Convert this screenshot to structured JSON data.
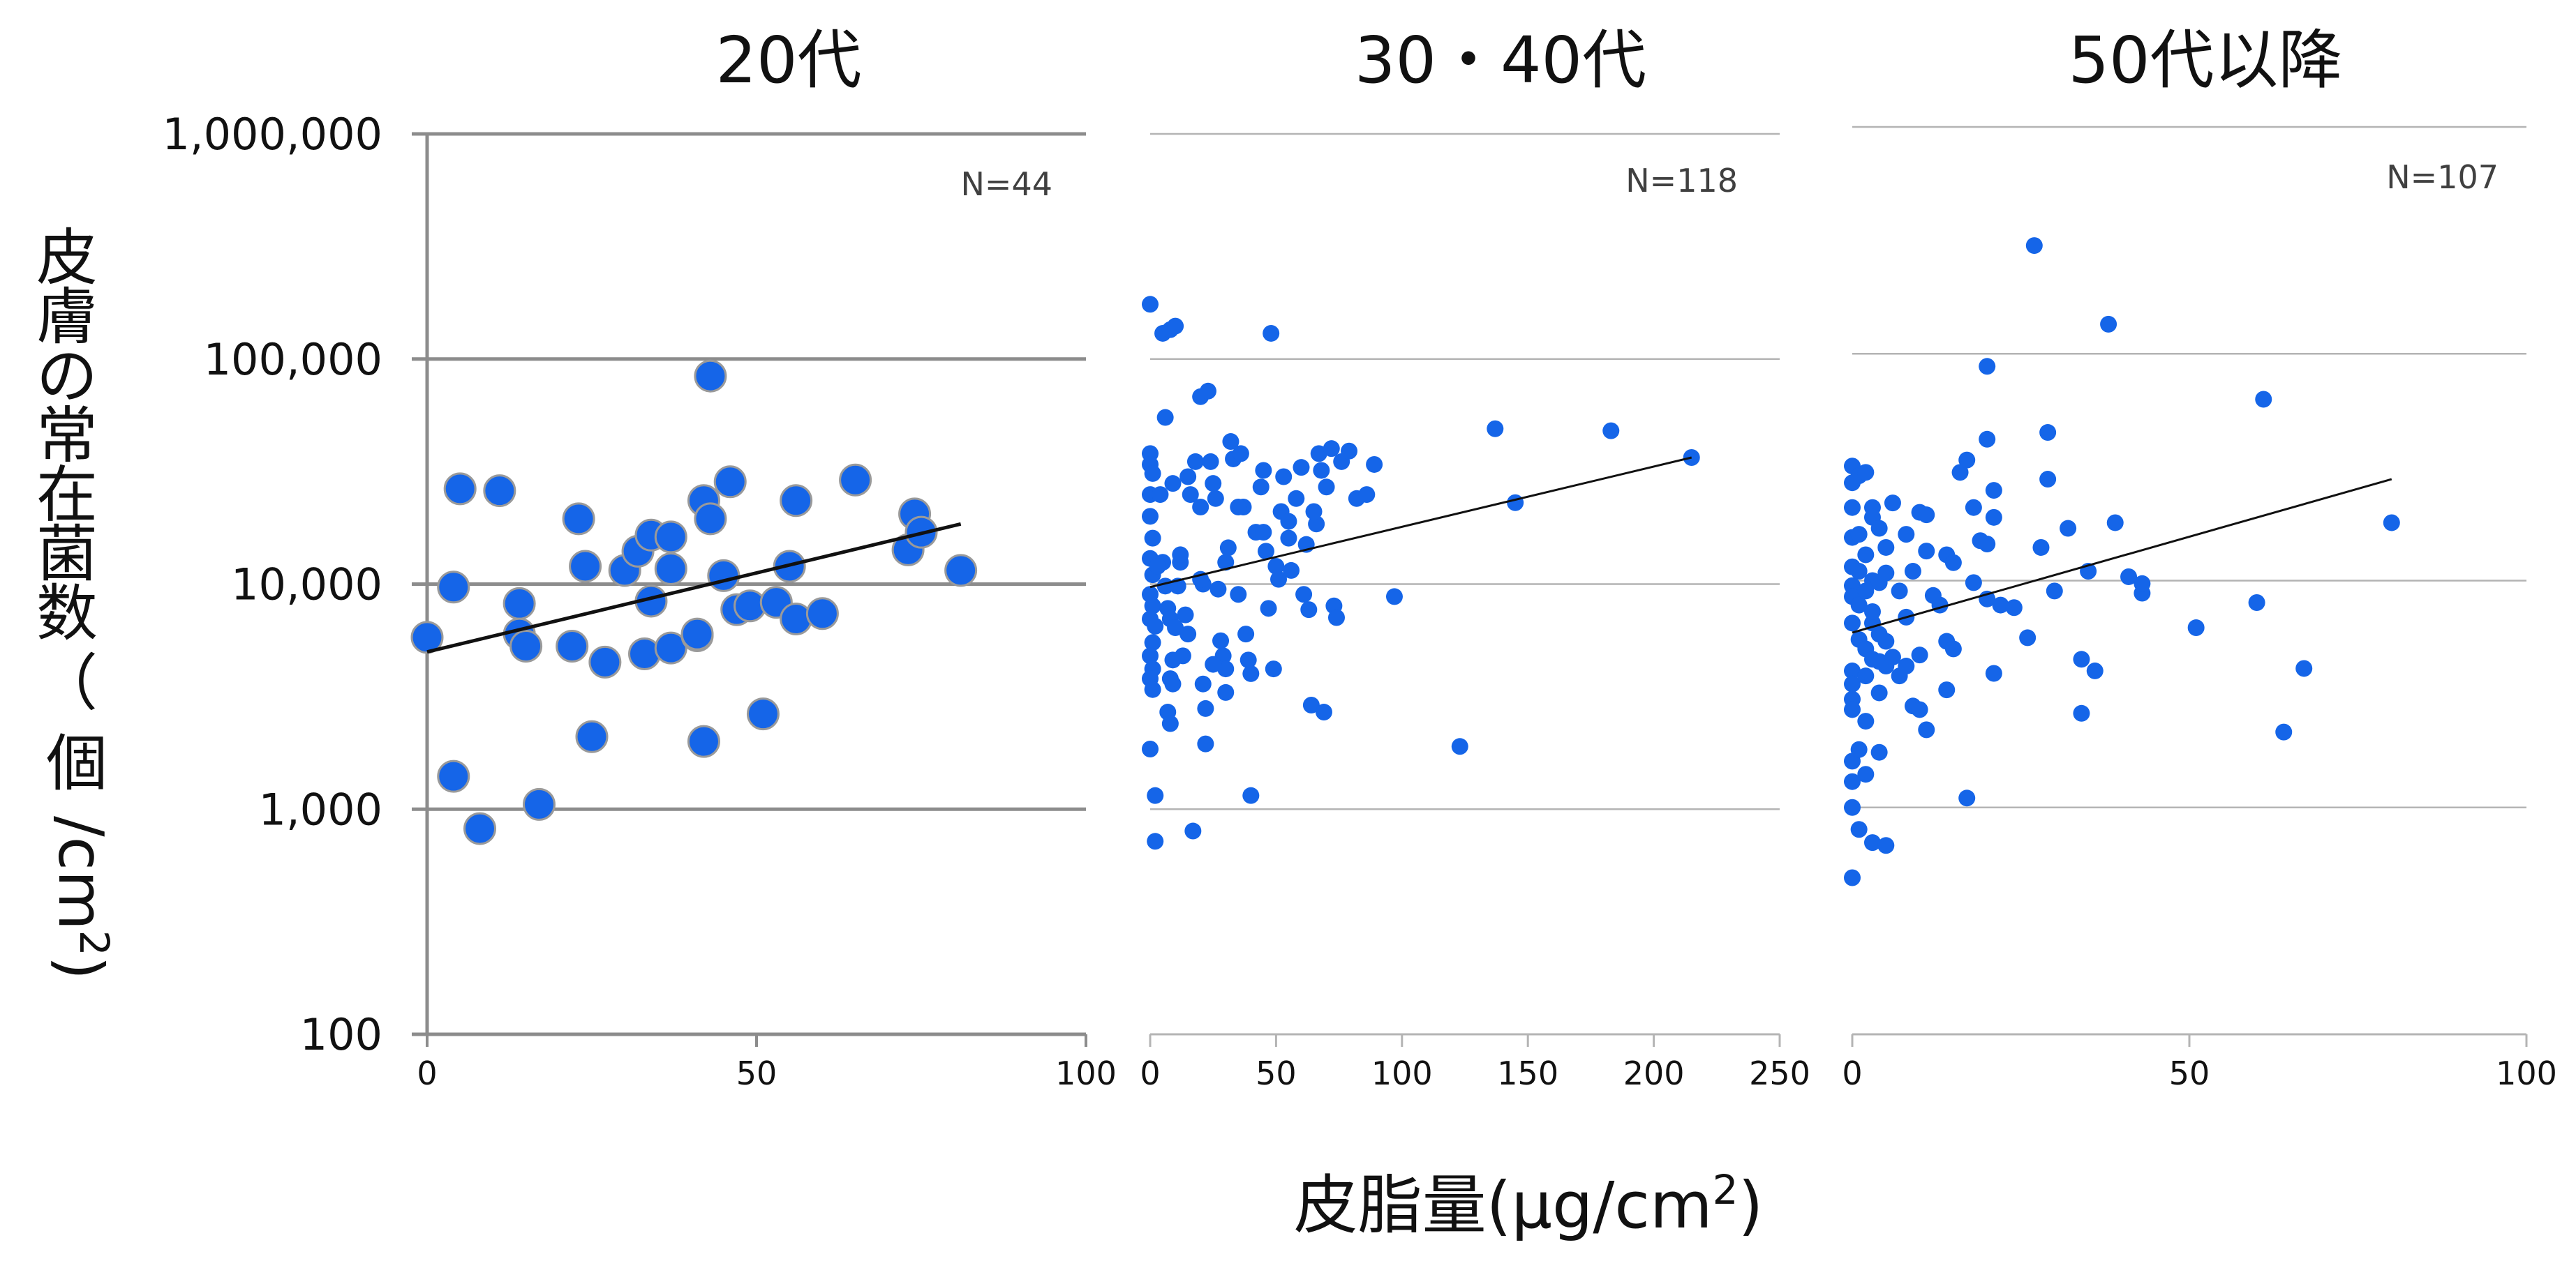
{
  "ylabel": {
    "chars": [
      "皮",
      "膚",
      "の",
      "常",
      "在",
      "菌",
      "数",
      "（",
      "個",
      "/cm",
      "2",
      ")"
    ]
  },
  "xlabel": {
    "main": "皮脂量(μg/cm",
    "sup": "2",
    "close": ")"
  },
  "colors": {
    "point": "#1565e8",
    "point_edge": "#9a9a9a",
    "trend": "#111111",
    "grid_main": "#8c8c8c",
    "grid_light": "#b4b4b4"
  },
  "chart_data": [
    {
      "type": "scatter",
      "title": "20代",
      "n_label": "N=44",
      "y_scale": "log",
      "xlim": [
        0,
        100
      ],
      "ylim": [
        100,
        1000000
      ],
      "x_ticks": [
        "0",
        "50",
        "100"
      ],
      "y_ticks": [
        "100",
        "1,000",
        "10,000",
        "100,000",
        "1,000,000"
      ],
      "trend": {
        "from": [
          0,
          5000
        ],
        "to": [
          81,
          18500
        ]
      },
      "points": [
        [
          0,
          5800
        ],
        [
          4,
          9700
        ],
        [
          4,
          1400
        ],
        [
          5,
          26500
        ],
        [
          8,
          820
        ],
        [
          11,
          26000
        ],
        [
          14,
          8200
        ],
        [
          14,
          6000
        ],
        [
          15,
          5300
        ],
        [
          17,
          1050
        ],
        [
          22,
          5300
        ],
        [
          23,
          19500
        ],
        [
          24,
          12000
        ],
        [
          25,
          2100
        ],
        [
          27,
          4500
        ],
        [
          30,
          11500
        ],
        [
          32,
          14000
        ],
        [
          33,
          4900
        ],
        [
          34,
          16500
        ],
        [
          34,
          8400
        ],
        [
          37,
          11700
        ],
        [
          37,
          16200
        ],
        [
          37,
          5200
        ],
        [
          41,
          5900
        ],
        [
          42,
          23500
        ],
        [
          42,
          2000
        ],
        [
          43,
          84000
        ],
        [
          43,
          19500
        ],
        [
          45,
          10900
        ],
        [
          46,
          28500
        ],
        [
          47,
          7700
        ],
        [
          49,
          8000
        ],
        [
          51,
          2650
        ],
        [
          53,
          8300
        ],
        [
          55,
          12000
        ],
        [
          56,
          23500
        ],
        [
          56,
          7000
        ],
        [
          60,
          7400
        ],
        [
          65,
          29000
        ],
        [
          73,
          14200
        ],
        [
          74,
          20500
        ],
        [
          75,
          17000
        ],
        [
          81,
          11500
        ],
        [
          41,
          6000
        ]
      ]
    },
    {
      "type": "scatter",
      "title": "30・40代",
      "n_label": "N=118",
      "y_scale": "log",
      "xlim": [
        0,
        250
      ],
      "ylim": [
        100,
        1000000
      ],
      "x_ticks": [
        "0",
        "50",
        "100",
        "150",
        "200",
        "250"
      ],
      "y_ticks": [
        "100",
        "1,000",
        "10,000",
        "100,000",
        "1,000,000"
      ],
      "trend": {
        "from": [
          0,
          9700
        ],
        "to": [
          215,
          36500
        ]
      },
      "points": [
        [
          0,
          175000
        ],
        [
          0,
          38000
        ],
        [
          0,
          34000
        ],
        [
          1,
          31000
        ],
        [
          0,
          25000
        ],
        [
          0,
          20000
        ],
        [
          1,
          16000
        ],
        [
          0,
          13000
        ],
        [
          1,
          11000
        ],
        [
          0,
          9000
        ],
        [
          1,
          8000
        ],
        [
          0,
          7000
        ],
        [
          1,
          5500
        ],
        [
          0,
          4800
        ],
        [
          1,
          4200
        ],
        [
          0,
          3800
        ],
        [
          1,
          3400
        ],
        [
          0,
          1850
        ],
        [
          2,
          1150
        ],
        [
          2,
          720
        ],
        [
          5,
          130000
        ],
        [
          6,
          55000
        ],
        [
          8,
          135000
        ],
        [
          10,
          140000
        ],
        [
          5,
          12500
        ],
        [
          6,
          9800
        ],
        [
          7,
          7800
        ],
        [
          8,
          7000
        ],
        [
          8,
          3800
        ],
        [
          7,
          2700
        ],
        [
          8,
          2400
        ],
        [
          9,
          3600
        ],
        [
          9,
          4600
        ],
        [
          10,
          6400
        ],
        [
          11,
          9800
        ],
        [
          12,
          12500
        ],
        [
          13,
          4800
        ],
        [
          14,
          7300
        ],
        [
          15,
          30000
        ],
        [
          16,
          25000
        ],
        [
          17,
          800
        ],
        [
          18,
          35000
        ],
        [
          20,
          68000
        ],
        [
          20,
          22000
        ],
        [
          21,
          10000
        ],
        [
          21,
          3600
        ],
        [
          22,
          2800
        ],
        [
          22,
          1950
        ],
        [
          23,
          72000
        ],
        [
          24,
          35000
        ],
        [
          25,
          28000
        ],
        [
          26,
          24000
        ],
        [
          27,
          9500
        ],
        [
          28,
          5600
        ],
        [
          29,
          4800
        ],
        [
          30,
          3300
        ],
        [
          30,
          4200
        ],
        [
          31,
          14500
        ],
        [
          32,
          43000
        ],
        [
          33,
          36000
        ],
        [
          35,
          9000
        ],
        [
          36,
          38000
        ],
        [
          37,
          22000
        ],
        [
          38,
          6000
        ],
        [
          39,
          4600
        ],
        [
          40,
          1150
        ],
        [
          42,
          17000
        ],
        [
          44,
          27000
        ],
        [
          45,
          32000
        ],
        [
          46,
          14000
        ],
        [
          47,
          7800
        ],
        [
          48,
          130000
        ],
        [
          49,
          4200
        ],
        [
          50,
          12000
        ],
        [
          51,
          10500
        ],
        [
          52,
          21000
        ],
        [
          53,
          30000
        ],
        [
          55,
          16000
        ],
        [
          56,
          11500
        ],
        [
          58,
          24000
        ],
        [
          60,
          33000
        ],
        [
          61,
          9000
        ],
        [
          62,
          15000
        ],
        [
          63,
          7700
        ],
        [
          64,
          2900
        ],
        [
          66,
          18500
        ],
        [
          67,
          38000
        ],
        [
          68,
          32000
        ],
        [
          69,
          2700
        ],
        [
          70,
          27000
        ],
        [
          72,
          40000
        ],
        [
          73,
          8000
        ],
        [
          74,
          7100
        ],
        [
          76,
          35000
        ],
        [
          79,
          39000
        ],
        [
          82,
          24000
        ],
        [
          86,
          25000
        ],
        [
          89,
          34000
        ],
        [
          97,
          8800
        ],
        [
          123,
          1900
        ],
        [
          137,
          49000
        ],
        [
          145,
          23000
        ],
        [
          183,
          48000
        ],
        [
          215,
          36500
        ],
        [
          20,
          10500
        ],
        [
          25,
          4400
        ],
        [
          30,
          12500
        ],
        [
          35,
          22000
        ],
        [
          40,
          4000
        ],
        [
          45,
          17000
        ],
        [
          55,
          19000
        ],
        [
          65,
          21000
        ],
        [
          15,
          6000
        ],
        [
          12,
          13500
        ],
        [
          3,
          12000
        ],
        [
          2,
          6500
        ],
        [
          4,
          25000
        ],
        [
          9,
          28000
        ]
      ]
    },
    {
      "type": "scatter",
      "title": "50代以降",
      "n_label": "N=107",
      "y_scale": "log",
      "xlim": [
        0,
        100
      ],
      "ylim": [
        100,
        1000000
      ],
      "x_ticks": [
        "0",
        "50",
        "100"
      ],
      "y_ticks": [
        "100",
        "1,000",
        "10,000",
        "100,000",
        "1,000,000"
      ],
      "trend": {
        "from": [
          0,
          5900
        ],
        "to": [
          80,
          28000
        ]
      },
      "points": [
        [
          0,
          32000
        ],
        [
          0,
          27000
        ],
        [
          0,
          15500
        ],
        [
          0,
          11500
        ],
        [
          0,
          9500
        ],
        [
          0,
          8500
        ],
        [
          0,
          6500
        ],
        [
          0,
          4000
        ],
        [
          0,
          3500
        ],
        [
          0,
          3000
        ],
        [
          0,
          2700
        ],
        [
          0,
          1600
        ],
        [
          0,
          1300
        ],
        [
          0,
          1000
        ],
        [
          0,
          490
        ],
        [
          1,
          29000
        ],
        [
          1,
          16000
        ],
        [
          1,
          11000
        ],
        [
          1,
          7800
        ],
        [
          1,
          5500
        ],
        [
          1,
          1800
        ],
        [
          1,
          800
        ],
        [
          2,
          30000
        ],
        [
          2,
          13000
        ],
        [
          2,
          5000
        ],
        [
          2,
          3800
        ],
        [
          2,
          2400
        ],
        [
          2,
          1400
        ],
        [
          3,
          21000
        ],
        [
          3,
          19000
        ],
        [
          3,
          10000
        ],
        [
          3,
          6500
        ],
        [
          3,
          4500
        ],
        [
          3,
          700
        ],
        [
          4,
          17000
        ],
        [
          4,
          9800
        ],
        [
          4,
          5800
        ],
        [
          4,
          4400
        ],
        [
          4,
          1750
        ],
        [
          5,
          14000
        ],
        [
          5,
          10800
        ],
        [
          5,
          5400
        ],
        [
          5,
          4200
        ],
        [
          5,
          680
        ],
        [
          6,
          4600
        ],
        [
          7,
          3800
        ],
        [
          8,
          4200
        ],
        [
          8,
          16000
        ],
        [
          9,
          2800
        ],
        [
          9,
          11000
        ],
        [
          10,
          20000
        ],
        [
          10,
          4700
        ],
        [
          10,
          2700
        ],
        [
          11,
          19500
        ],
        [
          11,
          13500
        ],
        [
          11,
          2200
        ],
        [
          13,
          7800
        ],
        [
          14,
          5400
        ],
        [
          14,
          13000
        ],
        [
          15,
          12000
        ],
        [
          16,
          30000
        ],
        [
          17,
          34000
        ],
        [
          17,
          1100
        ],
        [
          18,
          21000
        ],
        [
          19,
          15000
        ],
        [
          20,
          8300
        ],
        [
          20,
          14500
        ],
        [
          20,
          88000
        ],
        [
          20,
          42000
        ],
        [
          21,
          25000
        ],
        [
          21,
          19000
        ],
        [
          21,
          3900
        ],
        [
          22,
          7800
        ],
        [
          27,
          300000
        ],
        [
          28,
          14000
        ],
        [
          29,
          45000
        ],
        [
          29,
          28000
        ],
        [
          30,
          9000
        ],
        [
          34,
          2600
        ],
        [
          34,
          4500
        ],
        [
          36,
          4000
        ],
        [
          38,
          135000
        ],
        [
          39,
          18000
        ],
        [
          43,
          8800
        ],
        [
          43,
          9700
        ],
        [
          51,
          6200
        ],
        [
          60,
          8000
        ],
        [
          61,
          63000
        ],
        [
          64,
          2150
        ],
        [
          67,
          4100
        ],
        [
          80,
          18000
        ],
        [
          2,
          9000
        ],
        [
          3,
          7300
        ],
        [
          4,
          3200
        ],
        [
          6,
          22000
        ],
        [
          7,
          9000
        ],
        [
          8,
          6900
        ],
        [
          12,
          8600
        ],
        [
          14,
          3300
        ],
        [
          15,
          5000
        ],
        [
          18,
          9800
        ],
        [
          24,
          7600
        ],
        [
          26,
          5600
        ],
        [
          32,
          17000
        ],
        [
          35,
          11000
        ],
        [
          41,
          10400
        ],
        [
          0,
          21000
        ]
      ]
    }
  ]
}
